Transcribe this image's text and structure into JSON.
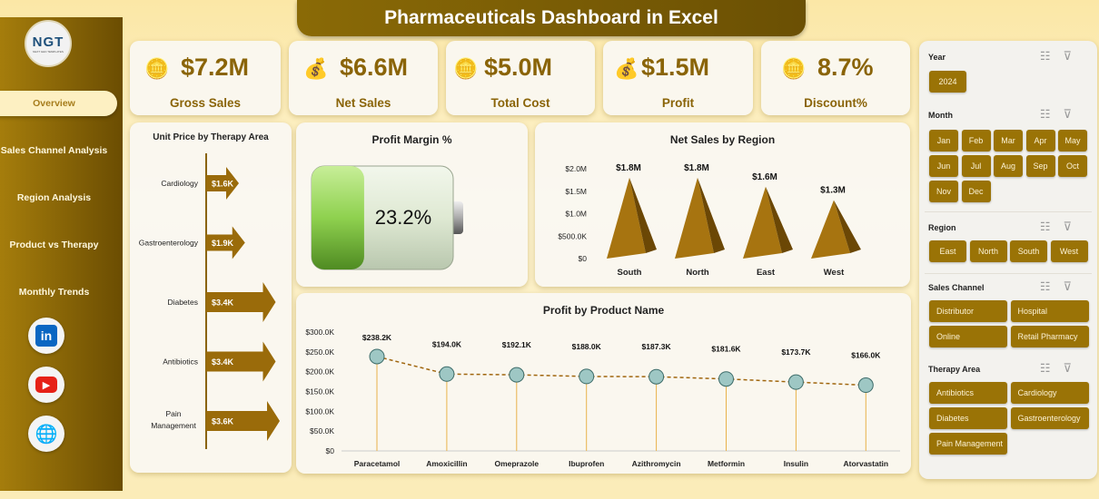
{
  "title": "Pharmaceuticals Dashboard in Excel",
  "logo": {
    "text": "NGT",
    "sub": "NEXT GEN TEMPLATES"
  },
  "nav": [
    {
      "label": "Overview",
      "active": true
    },
    {
      "label": "Sales Channel Analysis"
    },
    {
      "label": "Region Analysis"
    },
    {
      "label": "Product vs Therapy"
    },
    {
      "label": "Monthly Trends"
    }
  ],
  "social": [
    {
      "icon": "linkedin-icon",
      "label": "in"
    },
    {
      "icon": "youtube-icon",
      "label": "▶"
    },
    {
      "icon": "globe-icon",
      "label": "🌐"
    }
  ],
  "kpis": [
    {
      "value": "$7.2M",
      "label": "Gross Sales",
      "icon": "coins-icon"
    },
    {
      "value": "$6.6M",
      "label": "Net Sales",
      "icon": "money-bag-icon"
    },
    {
      "value": "$5.0M",
      "label": "Total Cost",
      "icon": "coins-icon"
    },
    {
      "value": "$1.5M",
      "label": "Profit",
      "icon": "money-bag-icon"
    },
    {
      "value": "8.7%",
      "label": "Discount%",
      "icon": "coins-icon"
    }
  ],
  "chart_data": [
    {
      "type": "bar",
      "title": "Unit Price by Therapy Area",
      "categories": [
        "Cardiology",
        "Gastroenterology",
        "Diabetes",
        "Antibiotics",
        "Pain Management"
      ],
      "values": [
        1.6,
        1.9,
        3.4,
        3.4,
        3.6
      ],
      "labels": [
        "$1.6K",
        "$1.9K",
        "$3.4K",
        "$3.4K",
        "$3.6K"
      ],
      "unit": "K USD"
    },
    {
      "type": "gauge",
      "title": "Profit Margin %",
      "value": 23.2,
      "label": "23.2%"
    },
    {
      "type": "bar",
      "title": "Net Sales by Region",
      "categories": [
        "South",
        "North",
        "East",
        "West"
      ],
      "values": [
        1.8,
        1.8,
        1.6,
        1.3
      ],
      "labels": [
        "$1.8M",
        "$1.8M",
        "$1.6M",
        "$1.3M"
      ],
      "yticks": [
        "$0",
        "$500.0K",
        "$1.0M",
        "$1.5M",
        "$2.0M"
      ],
      "ylim": [
        0,
        2.0
      ],
      "unit": "M USD"
    },
    {
      "type": "line",
      "title": "Profit by Product Name",
      "categories": [
        "Paracetamol",
        "Amoxicillin",
        "Omeprazole",
        "Ibuprofen",
        "Azithromycin",
        "Metformin",
        "Insulin",
        "Atorvastatin"
      ],
      "values": [
        238.2,
        194.0,
        192.1,
        188.0,
        187.3,
        181.6,
        173.7,
        166.0
      ],
      "labels": [
        "$238.2K",
        "$194.0K",
        "$192.1K",
        "$188.0K",
        "$187.3K",
        "$181.6K",
        "$173.7K",
        "$166.0K"
      ],
      "yticks": [
        "$0",
        "$50.0K",
        "$100.0K",
        "$150.0K",
        "$200.0K",
        "$250.0K",
        "$300.0K"
      ],
      "ylim": [
        0,
        300
      ],
      "unit": "K USD"
    }
  ],
  "slicers": {
    "year": {
      "title": "Year",
      "items": [
        "2024"
      ]
    },
    "month": {
      "title": "Month",
      "items": [
        "Jan",
        "Feb",
        "Mar",
        "Apr",
        "May",
        "Jun",
        "Jul",
        "Aug",
        "Sep",
        "Oct",
        "Nov",
        "Dec"
      ]
    },
    "region": {
      "title": "Region",
      "items": [
        "East",
        "North",
        "South",
        "West"
      ]
    },
    "channel": {
      "title": "Sales Channel",
      "items": [
        "Distributor",
        "Hospital",
        "Online",
        "Retail Pharmacy"
      ]
    },
    "therapy": {
      "title": "Therapy Area",
      "items": [
        "Antibiotics",
        "Cardiology",
        "Diabetes",
        "Gastroenterology",
        "Pain Management"
      ]
    }
  },
  "colors": {
    "accent": "#9a7306",
    "sidebar": "#8a6408",
    "green": "#8fd14f"
  }
}
